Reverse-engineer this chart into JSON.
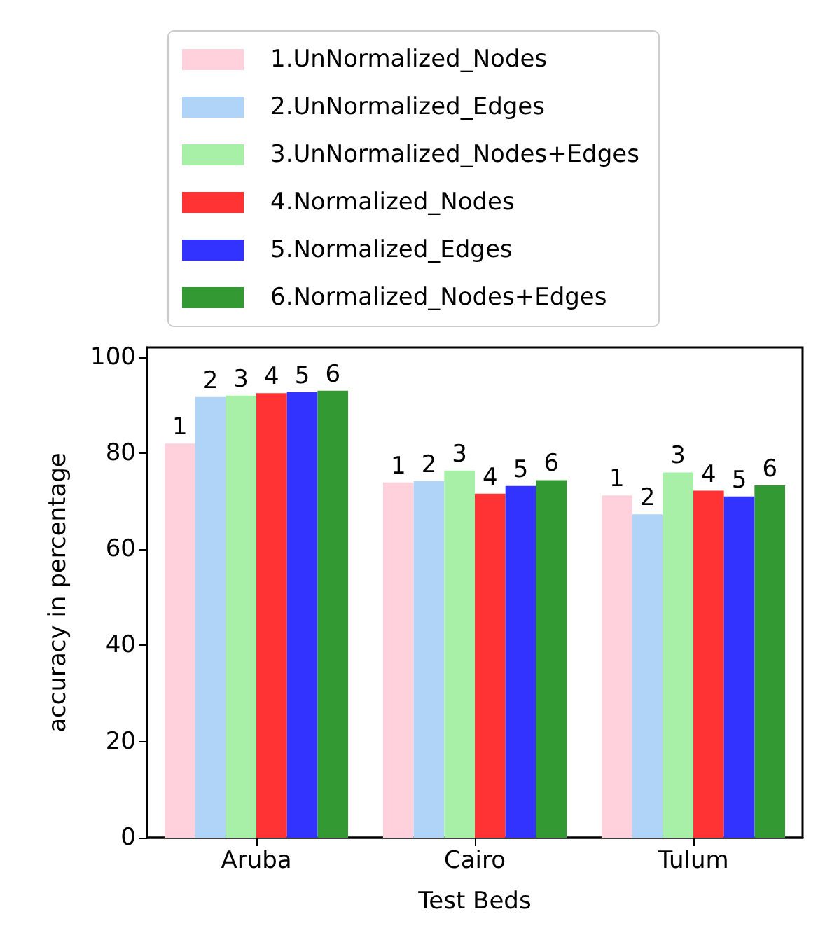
{
  "chart_data": {
    "type": "bar",
    "xlabel": "Test Beds",
    "ylabel": "accuracy in percentage",
    "categories": [
      "Aruba",
      "Cairo",
      "Tulum"
    ],
    "ylim": [
      0,
      102
    ],
    "yticks": [
      0,
      20,
      40,
      60,
      80,
      100
    ],
    "grid": false,
    "legend": "top",
    "series": [
      {
        "name": "1.UnNormalized_Nodes",
        "color": "#ffd1dc",
        "values": [
          82,
          73.9,
          71.2
        ]
      },
      {
        "name": "2.UnNormalized_Edges",
        "color": "#b0d4f7",
        "values": [
          91.7,
          74.2,
          67.3
        ]
      },
      {
        "name": "3.UnNormalized_Nodes+Edges",
        "color": "#a8f0a8",
        "values": [
          92,
          76.4,
          76
        ]
      },
      {
        "name": "4.Normalized_Nodes",
        "color": "#ff3333",
        "values": [
          92.5,
          71.6,
          72.2
        ]
      },
      {
        "name": "5.Normalized_Edges",
        "color": "#3333ff",
        "values": [
          92.7,
          73.2,
          71
        ]
      },
      {
        "name": "6.Normalized_Nodes+Edges",
        "color": "#339933",
        "values": [
          93,
          74.4,
          73.3
        ]
      }
    ],
    "annotations": [
      {
        "text": "1",
        "x": "Aruba",
        "y": 82
      },
      {
        "text": "2",
        "x": "Aruba",
        "y": 91.7
      },
      {
        "text": "3",
        "x": "Aruba",
        "y": 92
      },
      {
        "text": "4",
        "x": "Aruba",
        "y": 92.5
      },
      {
        "text": "5",
        "x": "Aruba",
        "y": 92.7
      },
      {
        "text": "6",
        "x": "Aruba",
        "y": 93
      },
      {
        "text": "1",
        "x": "Cairo",
        "y": 73.9
      },
      {
        "text": "2",
        "x": "Cairo",
        "y": 74.2
      },
      {
        "text": "3",
        "x": "Cairo",
        "y": 76.4
      },
      {
        "text": "4",
        "x": "Cairo",
        "y": 71.6
      },
      {
        "text": "5",
        "x": "Cairo",
        "y": 73.2
      },
      {
        "text": "6",
        "x": "Cairo",
        "y": 74.4
      },
      {
        "text": "1",
        "x": "Tulum",
        "y": 71.2
      },
      {
        "text": "2",
        "x": "Tulum",
        "y": 67.3
      },
      {
        "text": "3",
        "x": "Tulum",
        "y": 76
      },
      {
        "text": "4",
        "x": "Tulum",
        "y": 72.2
      },
      {
        "text": "5",
        "x": "Tulum",
        "y": 71
      },
      {
        "text": "6",
        "x": "Tulum",
        "y": 73.3
      }
    ]
  }
}
